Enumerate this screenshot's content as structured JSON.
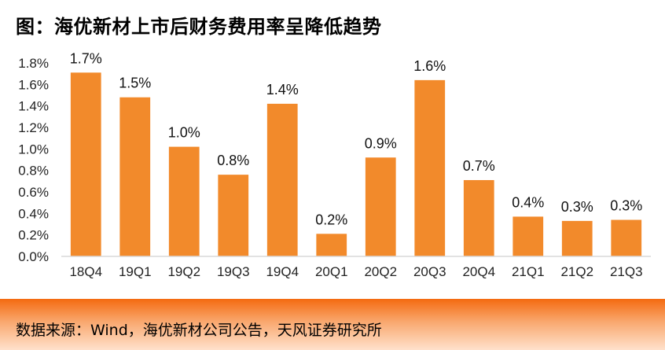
{
  "title": "图：海优新材上市后财务费用率呈降低趋势",
  "source": "数据来源：Wind，海优新材公司公告，天风证券研究所",
  "colors": {
    "bar": "#f28a2b",
    "footer": "#f46a10",
    "axis": "#d9d9d9",
    "text": "#222222"
  },
  "chart_data": {
    "type": "bar",
    "title": "图：海优新材上市后财务费用率呈降低趋势",
    "xlabel": "",
    "ylabel": "",
    "categories": [
      "18Q4",
      "19Q1",
      "19Q2",
      "19Q3",
      "19Q4",
      "20Q1",
      "20Q2",
      "20Q3",
      "20Q4",
      "21Q1",
      "21Q2",
      "21Q3"
    ],
    "values": [
      1.71,
      1.48,
      1.02,
      0.76,
      1.42,
      0.21,
      0.92,
      1.64,
      0.71,
      0.37,
      0.33,
      0.34
    ],
    "labels": [
      "1.7%",
      "1.5%",
      "1.0%",
      "0.8%",
      "1.4%",
      "0.2%",
      "0.9%",
      "1.6%",
      "0.7%",
      "0.4%",
      "0.3%",
      "0.3%"
    ],
    "yticks": [
      "0.0%",
      "0.2%",
      "0.4%",
      "0.6%",
      "0.8%",
      "1.0%",
      "1.2%",
      "1.4%",
      "1.6%",
      "1.8%"
    ],
    "ylim": [
      0,
      1.8
    ],
    "grid": false,
    "legend": "none"
  }
}
